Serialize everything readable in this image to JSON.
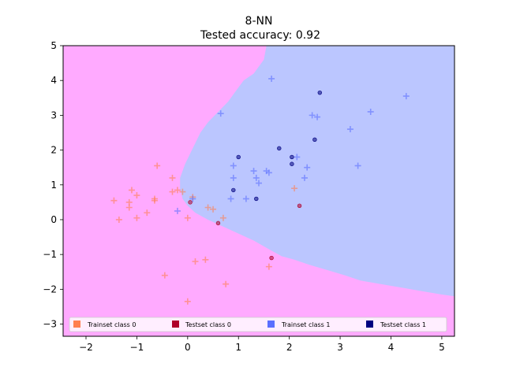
{
  "chart_data": {
    "type": "scatter",
    "title": "8-NN",
    "subtitle": "Tested accuracy: 0.92",
    "xlabel": "",
    "ylabel": "",
    "xlim": [
      -2.45,
      5.25
    ],
    "ylim": [
      -3.35,
      5.0
    ],
    "x_ticks": [
      -2,
      -1,
      0,
      1,
      2,
      3,
      4,
      5
    ],
    "y_ticks": [
      -3,
      -2,
      -1,
      0,
      1,
      2,
      3,
      4,
      5
    ],
    "grid": false,
    "legend_placement": "bottom",
    "decision_regions": {
      "class_0_color": "#ffaaff",
      "class_1_color": "#bbc6ff",
      "boundary": [
        [
          1.55,
          5.0
        ],
        [
          1.5,
          4.6
        ],
        [
          1.4,
          4.4
        ],
        [
          1.3,
          4.2
        ],
        [
          1.1,
          4.0
        ],
        [
          0.95,
          3.7
        ],
        [
          0.8,
          3.4
        ],
        [
          0.6,
          3.1
        ],
        [
          0.4,
          2.8
        ],
        [
          0.25,
          2.5
        ],
        [
          0.15,
          2.2
        ],
        [
          0.05,
          1.9
        ],
        [
          -0.05,
          1.6
        ],
        [
          -0.15,
          1.2
        ],
        [
          -0.15,
          0.9
        ],
        [
          -0.1,
          0.6
        ],
        [
          0.0,
          0.4
        ],
        [
          0.15,
          0.2
        ],
        [
          0.4,
          0.0
        ],
        [
          0.7,
          -0.2
        ],
        [
          1.0,
          -0.4
        ],
        [
          1.3,
          -0.6
        ],
        [
          1.6,
          -0.85
        ],
        [
          1.85,
          -1.05
        ],
        [
          2.1,
          -1.15
        ],
        [
          2.4,
          -1.3
        ],
        [
          2.75,
          -1.45
        ],
        [
          3.1,
          -1.6
        ],
        [
          3.4,
          -1.75
        ],
        [
          3.8,
          -1.85
        ],
        [
          4.2,
          -1.95
        ],
        [
          4.6,
          -2.05
        ],
        [
          5.0,
          -2.15
        ],
        [
          5.25,
          -2.2
        ],
        [
          5.25,
          5.0
        ]
      ]
    },
    "series": [
      {
        "name": "Trainset class 0",
        "color": "#ff7f50",
        "marker": "plus",
        "points": [
          [
            -1.45,
            0.55
          ],
          [
            -1.35,
            0.0
          ],
          [
            -1.15,
            0.35
          ],
          [
            -1.15,
            0.5
          ],
          [
            -1.1,
            0.85
          ],
          [
            -1.0,
            0.7
          ],
          [
            -1.0,
            0.05
          ],
          [
            -0.8,
            0.2
          ],
          [
            -0.65,
            0.55
          ],
          [
            -0.65,
            0.6
          ],
          [
            -0.6,
            1.55
          ],
          [
            -0.45,
            -1.6
          ],
          [
            -0.3,
            1.2
          ],
          [
            -0.3,
            0.8
          ],
          [
            -0.2,
            0.85
          ],
          [
            -0.1,
            0.8
          ],
          [
            0.0,
            -2.35
          ],
          [
            0.0,
            0.05
          ],
          [
            0.1,
            0.65
          ],
          [
            0.15,
            -1.2
          ],
          [
            0.35,
            -1.15
          ],
          [
            0.4,
            0.35
          ],
          [
            0.5,
            0.3
          ],
          [
            0.7,
            0.05
          ],
          [
            0.75,
            -1.85
          ],
          [
            1.6,
            -1.35
          ],
          [
            2.1,
            0.9
          ]
        ]
      },
      {
        "name": "Testset class 0",
        "color": "#b0002a",
        "marker": "dot",
        "points": [
          [
            0.05,
            0.5
          ],
          [
            0.6,
            -0.1
          ],
          [
            1.65,
            -1.1
          ],
          [
            2.2,
            0.4
          ]
        ]
      },
      {
        "name": "Trainset class 1",
        "color": "#5b6fff",
        "marker": "plus",
        "points": [
          [
            -0.2,
            0.25
          ],
          [
            0.1,
            0.6
          ],
          [
            0.65,
            3.05
          ],
          [
            0.85,
            0.6
          ],
          [
            0.9,
            1.55
          ],
          [
            0.9,
            1.2
          ],
          [
            1.15,
            0.6
          ],
          [
            1.3,
            1.4
          ],
          [
            1.35,
            1.2
          ],
          [
            1.4,
            1.05
          ],
          [
            1.55,
            1.4
          ],
          [
            1.65,
            4.05
          ],
          [
            1.6,
            1.35
          ],
          [
            2.15,
            1.8
          ],
          [
            2.3,
            1.2
          ],
          [
            2.35,
            1.5
          ],
          [
            2.45,
            3.0
          ],
          [
            2.55,
            2.95
          ],
          [
            3.2,
            2.6
          ],
          [
            3.35,
            1.55
          ],
          [
            3.6,
            3.1
          ],
          [
            4.3,
            3.55
          ]
        ]
      },
      {
        "name": "Testset class 1",
        "color": "#000080",
        "marker": "dot",
        "points": [
          [
            0.9,
            0.85
          ],
          [
            1.0,
            1.8
          ],
          [
            1.35,
            0.6
          ],
          [
            1.8,
            2.05
          ],
          [
            2.05,
            1.8
          ],
          [
            2.05,
            1.6
          ],
          [
            2.5,
            2.3
          ],
          [
            2.6,
            3.65
          ]
        ]
      }
    ]
  }
}
